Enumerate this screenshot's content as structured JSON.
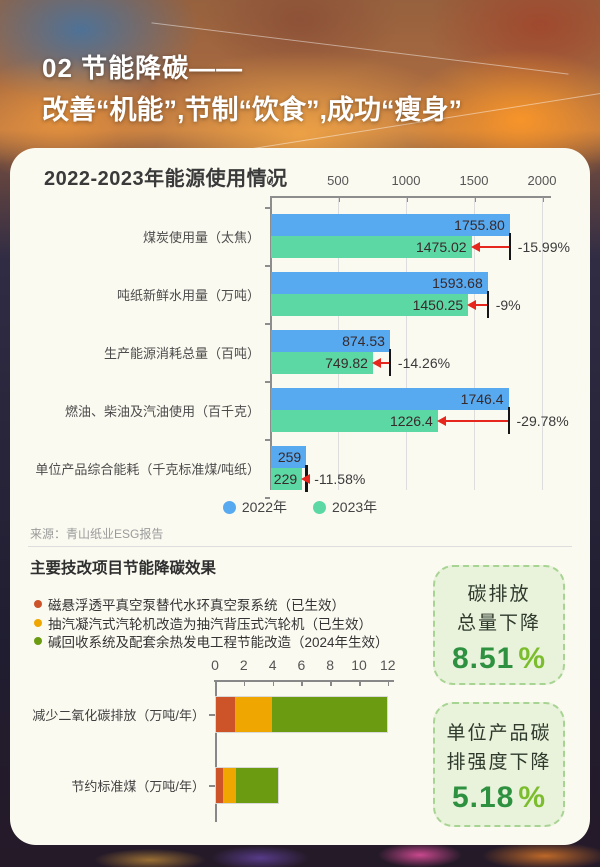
{
  "header": {
    "kicker": "02 节能降碳——",
    "title": "改善“机能”,节制“饮食”,成功“瘦身”"
  },
  "chart_data": [
    {
      "type": "bar",
      "orientation": "horizontal",
      "title": "2022-2023年能源使用情况",
      "categories": [
        "煤炭使用量（太焦）",
        "吨纸新鲜水用量（万吨）",
        "生产能源消耗总量（百吨）",
        "燃油、柴油及汽油使用（百千克）",
        "单位产品综合能耗（千克标准煤/吨纸）"
      ],
      "series": [
        {
          "name": "2022年",
          "color": "#57a9f0",
          "values": [
            1755.8,
            1593.68,
            874.53,
            1746.4,
            259
          ]
        },
        {
          "name": "2023年",
          "color": "#5cd8a4",
          "values": [
            1475.02,
            1450.25,
            749.82,
            1226.4,
            229
          ]
        }
      ],
      "value_labels": [
        [
          "1755.80",
          "1475.02"
        ],
        [
          "1593.68",
          "1450.25"
        ],
        [
          "874.53",
          "749.82"
        ],
        [
          "1746.4",
          "1226.4"
        ],
        [
          "259",
          "229"
        ]
      ],
      "change_labels": [
        "-15.99%",
        "-9%",
        "-14.26%",
        "-29.78%",
        "-11.58%"
      ],
      "xlim": [
        0,
        2000
      ],
      "x_ticks": [
        "0",
        "500",
        "1000",
        "1500",
        "2000"
      ],
      "grid": true,
      "legend_position": "bottom",
      "arrow_color": "#e5271d",
      "source": "来源：青山纸业ESG报告"
    },
    {
      "type": "bar",
      "subtype": "stacked",
      "orientation": "horizontal",
      "title": "主要技改项目节能降碳效果",
      "categories": [
        "减少二氧化碳排放（万吨/年）",
        "节约标准煤（万吨/年）"
      ],
      "series": [
        {
          "name": "磁悬浮透平真空泵替代水环真空泵系统（已生效）",
          "color": "#cd5329",
          "values": [
            1.3,
            0.5
          ]
        },
        {
          "name": "抽汽凝汽式汽轮机改造为抽汽背压式汽轮机（已生效）",
          "color": "#f0a600",
          "values": [
            2.6,
            0.9
          ]
        },
        {
          "name": "碱回收系统及配套余热发电工程节能改造（2024年生效）",
          "color": "#6b9b10",
          "values": [
            8.0,
            2.9
          ]
        }
      ],
      "xlim": [
        0,
        12
      ],
      "x_ticks": [
        "0",
        "2",
        "4",
        "6",
        "8",
        "10",
        "12"
      ],
      "grid": false,
      "legend_position": "bullets-top-left"
    }
  ],
  "badges": [
    {
      "lines": [
        "碳排放",
        "总量下降"
      ],
      "value": "8.51",
      "unit": "%",
      "value_color": "#2e9140"
    },
    {
      "lines": [
        "单位产品碳",
        "排强度下降"
      ],
      "value": "5.18",
      "unit": "%",
      "value_color": "#2e9140"
    }
  ]
}
